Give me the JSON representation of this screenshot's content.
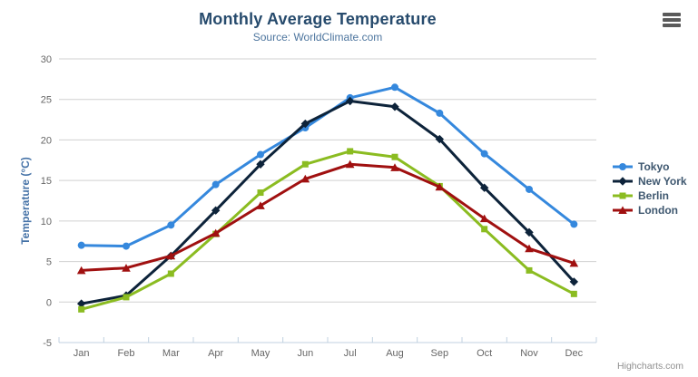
{
  "header": {
    "title": "Monthly Average Temperature",
    "subtitle": "Source: WorldClimate.com"
  },
  "credits": "Highcharts.com",
  "icons": {
    "menu": "hamburger-menu-icon"
  },
  "colors": {
    "title": "#274b6d",
    "subtitle": "#4d759e",
    "axis_labels": "#666666",
    "y_axis_title": "#4572a7",
    "gridline": "#d0d0d0",
    "axis_line": "#c0d0e0",
    "legend_text": "#3e576f",
    "credits_text": "#8f8f8f"
  },
  "chart_data": {
    "type": "line",
    "title": "Monthly Average Temperature",
    "subtitle": "Source: WorldClimate.com",
    "categories": [
      "Jan",
      "Feb",
      "Mar",
      "Apr",
      "May",
      "Jun",
      "Jul",
      "Aug",
      "Sep",
      "Oct",
      "Nov",
      "Dec"
    ],
    "xlabel": "",
    "ylabel": "Temperature (°C)",
    "ylim": [
      -5,
      30
    ],
    "yticks": [
      30,
      25,
      20,
      15,
      10,
      5,
      0,
      -5
    ],
    "grid": true,
    "legend_position": "right",
    "series": [
      {
        "name": "Tokyo",
        "color": "#3588dd",
        "marker": "circle",
        "values": [
          7.0,
          6.9,
          9.5,
          14.5,
          18.2,
          21.5,
          25.2,
          26.5,
          23.3,
          18.3,
          13.9,
          9.6
        ]
      },
      {
        "name": "New York",
        "color": "#0d233a",
        "marker": "diamond",
        "values": [
          -0.2,
          0.8,
          5.7,
          11.3,
          17.0,
          22.0,
          24.8,
          24.1,
          20.1,
          14.1,
          8.6,
          2.5
        ]
      },
      {
        "name": "Berlin",
        "color": "#8bbc21",
        "marker": "square",
        "values": [
          -0.9,
          0.6,
          3.5,
          8.4,
          13.5,
          17.0,
          18.6,
          17.9,
          14.3,
          9.0,
          3.9,
          1.0
        ]
      },
      {
        "name": "London",
        "color": "#a01010",
        "marker": "triangle",
        "values": [
          3.9,
          4.2,
          5.7,
          8.5,
          11.9,
          15.2,
          17.0,
          16.6,
          14.2,
          10.3,
          6.6,
          4.8
        ]
      }
    ]
  }
}
